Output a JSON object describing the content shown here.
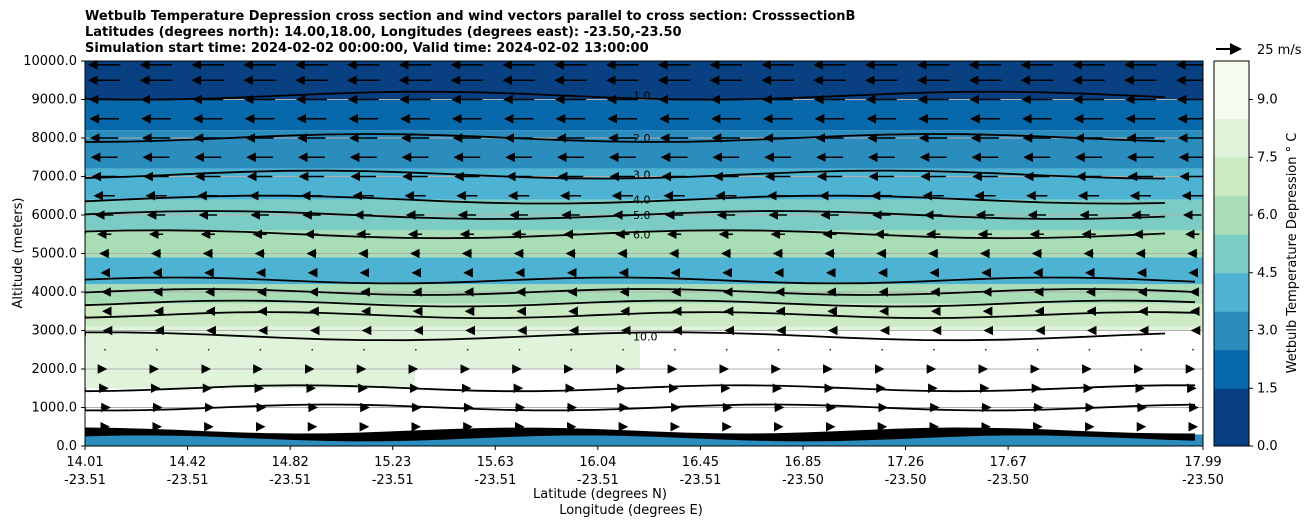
{
  "chart_data": {
    "type": "contourf",
    "title_lines": [
      "Wetbulb Temperature Depression cross section and wind vectors parallel to cross section: CrosssectionB",
      "Latitudes (degrees north): 14.00,18.00, Longitudes (degrees east): -23.50,-23.50",
      "Simulation start time: 2024-02-02 00:00:00, Valid time: 2024-02-02 13:00:00"
    ],
    "xlabel_lines": [
      "Latitude (degrees N)",
      "Longitude (degrees E)"
    ],
    "ylabel": "Altitude (meters)",
    "x_ticks": [
      {
        "lat": "14.01",
        "lon": "-23.51"
      },
      {
        "lat": "14.42",
        "lon": "-23.51"
      },
      {
        "lat": "14.82",
        "lon": "-23.51"
      },
      {
        "lat": "15.23",
        "lon": "-23.51"
      },
      {
        "lat": "15.63",
        "lon": "-23.51"
      },
      {
        "lat": "16.04",
        "lon": "-23.51"
      },
      {
        "lat": "16.45",
        "lon": "-23.51"
      },
      {
        "lat": "16.85",
        "lon": "-23.50"
      },
      {
        "lat": "17.26",
        "lon": "-23.50"
      },
      {
        "lat": "17.67",
        "lon": "-23.50"
      },
      {
        "lat": "17.99",
        "lon": "-23.50"
      }
    ],
    "y_ticks": [
      "0.0",
      "1000.0",
      "2000.0",
      "3000.0",
      "4000.0",
      "5000.0",
      "6000.0",
      "7000.0",
      "8000.0",
      "9000.0",
      "10000.0"
    ],
    "ylim": [
      0,
      10000
    ],
    "grid": "horizontal",
    "colorbar": {
      "label": "Wetbulb Temperature Depression ° C",
      "ticks": [
        "0.0",
        "1.5",
        "3.0",
        "4.5",
        "6.0",
        "7.5",
        "9.0"
      ],
      "range": [
        0,
        10
      ],
      "colormap": "GnBu_r",
      "colors": [
        "#084081",
        "#0868ac",
        "#2b8cbe",
        "#4eb3d3",
        "#7bccc4",
        "#a8ddb5",
        "#ccebc5",
        "#e0f3db",
        "#f7fcf0"
      ]
    },
    "quiver_key": "25 m/s",
    "contour_levels": [
      {
        "value": 1.0,
        "label": "1.0",
        "altitude_m": 9100
      },
      {
        "value": 2.0,
        "label": "2.0",
        "altitude_m": 8000
      },
      {
        "value": 3.0,
        "label": "3.0",
        "altitude_m": 7050
      },
      {
        "value": 4.0,
        "label": "4.0",
        "altitude_m": 6400
      },
      {
        "value": 5.0,
        "label": "5.0",
        "altitude_m": 6000
      },
      {
        "value": 6.0,
        "label": "6.0",
        "altitude_m": 5500
      },
      {
        "value": 10.0,
        "label": "10.0",
        "altitude_m": 2850
      }
    ],
    "wind_rows": [
      {
        "altitude_m": 9900,
        "u": -22
      },
      {
        "altitude_m": 9500,
        "u": -22
      },
      {
        "altitude_m": 9000,
        "u": -21
      },
      {
        "altitude_m": 8500,
        "u": -20
      },
      {
        "altitude_m": 8000,
        "u": -19
      },
      {
        "altitude_m": 7500,
        "u": -18
      },
      {
        "altitude_m": 7000,
        "u": -17
      },
      {
        "altitude_m": 6500,
        "u": -14
      },
      {
        "altitude_m": 6000,
        "u": -12
      },
      {
        "altitude_m": 5500,
        "u": -9
      },
      {
        "altitude_m": 5000,
        "u": -6
      },
      {
        "altitude_m": 4500,
        "u": -4
      },
      {
        "altitude_m": 4000,
        "u": -3
      },
      {
        "altitude_m": 3500,
        "u": -2
      },
      {
        "altitude_m": 3000,
        "u": -1
      },
      {
        "altitude_m": 2500,
        "u": 0
      },
      {
        "altitude_m": 2000,
        "u": 1
      },
      {
        "altitude_m": 1500,
        "u": 3
      },
      {
        "altitude_m": 1000,
        "u": 6
      },
      {
        "altitude_m": 500,
        "u": 5
      }
    ]
  }
}
